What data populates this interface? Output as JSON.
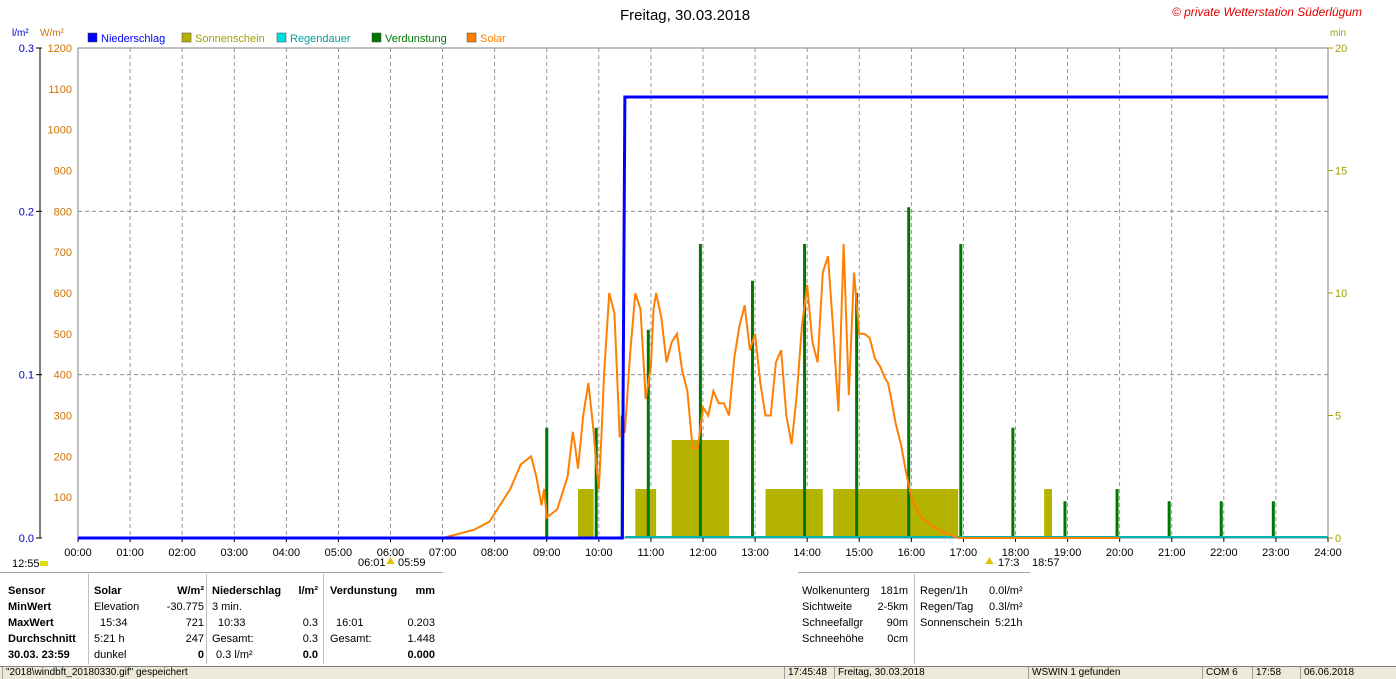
{
  "header": {
    "title": "Freitag, 30.03.2018",
    "copyright": "© private Wetterstation Süderlügum",
    "left_unit1": "l/m²",
    "left_unit2": "W/m²",
    "right_unit": "min"
  },
  "legend": [
    {
      "label": "Niederschlag",
      "color": "#0000ff"
    },
    {
      "label": "Sonnenschein",
      "color": "#b4b400"
    },
    {
      "label": "Regendauer",
      "color": "#00e0e0"
    },
    {
      "label": "Verdunstung",
      "color": "#007800"
    },
    {
      "label": "Solar",
      "color": "#ff8000"
    }
  ],
  "colors": {
    "rain": "#0000ff",
    "sun": "#b4b400",
    "raindur": "#00b4b4",
    "evap": "#007800",
    "solar": "#ff8000",
    "grid": "#808080"
  },
  "chart_data": {
    "type": "line",
    "x_range_hours": [
      0,
      24
    ],
    "x_ticks": [
      "00:00",
      "01:00",
      "02:00",
      "03:00",
      "04:00",
      "05:00",
      "06:00",
      "07:00",
      "08:00",
      "09:00",
      "10:00",
      "11:00",
      "12:00",
      "13:00",
      "14:00",
      "15:00",
      "16:00",
      "17:00",
      "18:00",
      "19:00",
      "20:00",
      "21:00",
      "22:00",
      "23:00",
      "24:00"
    ],
    "y_left_rain": {
      "range": [
        0,
        0.3
      ],
      "ticks": [
        "0.0",
        "0.1",
        "0.2",
        "0.3"
      ]
    },
    "y_left_solar": {
      "range": [
        0,
        1200
      ],
      "ticks": [
        "100",
        "200",
        "300",
        "400",
        "500",
        "600",
        "700",
        "800",
        "900",
        "1000",
        "1100",
        "1200"
      ]
    },
    "y_right_min": {
      "range": [
        0,
        20
      ],
      "ticks": [
        "0",
        "5",
        "10",
        "15",
        "20"
      ]
    },
    "grid": true,
    "niederschlag": {
      "name": "Niederschlag",
      "x": [
        0,
        10.45,
        10.5,
        24
      ],
      "y": [
        0,
        0,
        0.27,
        0.27
      ]
    },
    "solar": {
      "name": "Solar",
      "x": [
        7.0,
        7.3,
        7.6,
        7.9,
        8.1,
        8.3,
        8.5,
        8.7,
        8.8,
        8.9,
        8.95,
        9.0,
        9.1,
        9.2,
        9.3,
        9.4,
        9.5,
        9.55,
        9.6,
        9.7,
        9.8,
        9.9,
        9.95,
        10.0,
        10.05,
        10.1,
        10.2,
        10.3,
        10.4,
        10.5,
        10.6,
        10.7,
        10.8,
        10.9,
        11.0,
        11.05,
        11.1,
        11.2,
        11.3,
        11.4,
        11.5,
        11.6,
        11.7,
        11.8,
        11.9,
        12.0,
        12.1,
        12.2,
        12.3,
        12.4,
        12.5,
        12.6,
        12.7,
        12.8,
        12.9,
        13.0,
        13.1,
        13.2,
        13.3,
        13.4,
        13.5,
        13.6,
        13.7,
        13.8,
        13.9,
        14.0,
        14.1,
        14.2,
        14.3,
        14.4,
        14.5,
        14.6,
        14.7,
        14.8,
        14.9,
        15.0,
        15.1,
        15.2,
        15.3,
        15.4,
        15.5,
        15.55,
        15.6,
        15.7,
        15.8,
        15.9,
        16.0,
        16.1,
        16.2,
        16.4,
        16.6,
        16.8,
        16.9,
        17.0,
        17.1,
        17.2,
        17.4,
        17.6,
        17.8,
        18.0,
        18.2,
        18.5,
        18.8,
        19.0,
        19.3,
        19.6,
        19.9,
        20.0
      ],
      "y": [
        0,
        10,
        20,
        40,
        80,
        120,
        180,
        200,
        150,
        80,
        120,
        50,
        60,
        70,
        110,
        150,
        260,
        220,
        170,
        300,
        380,
        260,
        180,
        120,
        250,
        400,
        600,
        550,
        250,
        260,
        450,
        600,
        560,
        340,
        420,
        560,
        600,
        540,
        430,
        480,
        500,
        410,
        360,
        220,
        220,
        320,
        300,
        360,
        330,
        330,
        300,
        440,
        520,
        570,
        460,
        500,
        380,
        300,
        300,
        430,
        460,
        300,
        230,
        350,
        520,
        620,
        480,
        430,
        650,
        690,
        510,
        310,
        720,
        350,
        650,
        500,
        500,
        490,
        440,
        420,
        390,
        380,
        350,
        280,
        230,
        160,
        100,
        70,
        50,
        30,
        15,
        5,
        0,
        0,
        0,
        0,
        0,
        0,
        0,
        0,
        0,
        0,
        0,
        0,
        0,
        0,
        0,
        0
      ]
    },
    "sonnenschein": {
      "name": "Sonnenschein",
      "segments": [
        [
          9.6,
          9.9,
          2
        ],
        [
          10.7,
          11.1,
          2
        ],
        [
          11.4,
          12.5,
          4
        ],
        [
          13.2,
          14.3,
          2
        ],
        [
          14.5,
          16.9,
          2
        ],
        [
          18.55,
          18.7,
          2
        ]
      ]
    },
    "verdunstung": {
      "name": "Verdunstung",
      "x": [
        9.0,
        9.95,
        10.45,
        10.95,
        11.95,
        12.95,
        13.95,
        14.95,
        15.95,
        16.95,
        17.95,
        18.95,
        19.95,
        20.95,
        21.95,
        22.95
      ],
      "y": [
        4.5,
        4.5,
        5,
        8.5,
        12,
        10.5,
        12,
        10,
        13.5,
        12,
        4.5,
        1.5,
        2,
        1.5,
        1.5,
        1.5
      ]
    }
  },
  "below_axis": {
    "left_time": "12:55",
    "sunrise": "06:01",
    "sunrise2": "05:59",
    "sunset": "17:3",
    "sunset2": "18:57"
  },
  "stats": {
    "row_labels": [
      "Sensor",
      "MinWert",
      "MaxWert",
      "Durchschnitt",
      "30.03.  23:59"
    ],
    "solar": {
      "header": "Solar",
      "unit": "W/m²",
      "rows": [
        [
          "Elevation",
          "-30.775"
        ],
        [
          "15:34",
          "721"
        ],
        [
          "5:21 h",
          "247"
        ],
        [
          "dunkel",
          "0"
        ]
      ]
    },
    "niederschlag": {
      "header": "Niederschlag",
      "unit": "l/m²",
      "rows": [
        [
          "3 min.",
          ""
        ],
        [
          "10:33",
          "0.3"
        ],
        [
          "Gesamt:",
          "0.3"
        ],
        [
          "0.3 l/m²",
          "0.0"
        ]
      ]
    },
    "verdunstung": {
      "header": "Verdunstung",
      "unit": "mm",
      "rows": [
        [
          "",
          ""
        ],
        [
          "16:01",
          "0.203"
        ],
        [
          "Gesamt:",
          "1.448"
        ],
        [
          "",
          "0.000"
        ]
      ]
    },
    "weather": [
      [
        "Wolkenunterg",
        "181m"
      ],
      [
        "Sichtweite",
        "2-5km"
      ],
      [
        "Schneefallgr",
        "90m"
      ],
      [
        "Schneehöhe",
        "0cm"
      ]
    ],
    "rain": [
      [
        "Regen/1h",
        "0.0l/m²"
      ],
      [
        "Regen/Tag",
        "0.3l/m²"
      ],
      [
        "Sonnenschein",
        "5:21h"
      ]
    ]
  },
  "statusbar": {
    "file": "\"2018\\windbft_20180330.gif\"  gespeichert",
    "time": "17:45:48",
    "date": "Freitag, 30.03.2018",
    "found": "WSWIN 1 gefunden",
    "com": "COM 6",
    "clock": "17:58",
    "today": "06.06.2018"
  }
}
